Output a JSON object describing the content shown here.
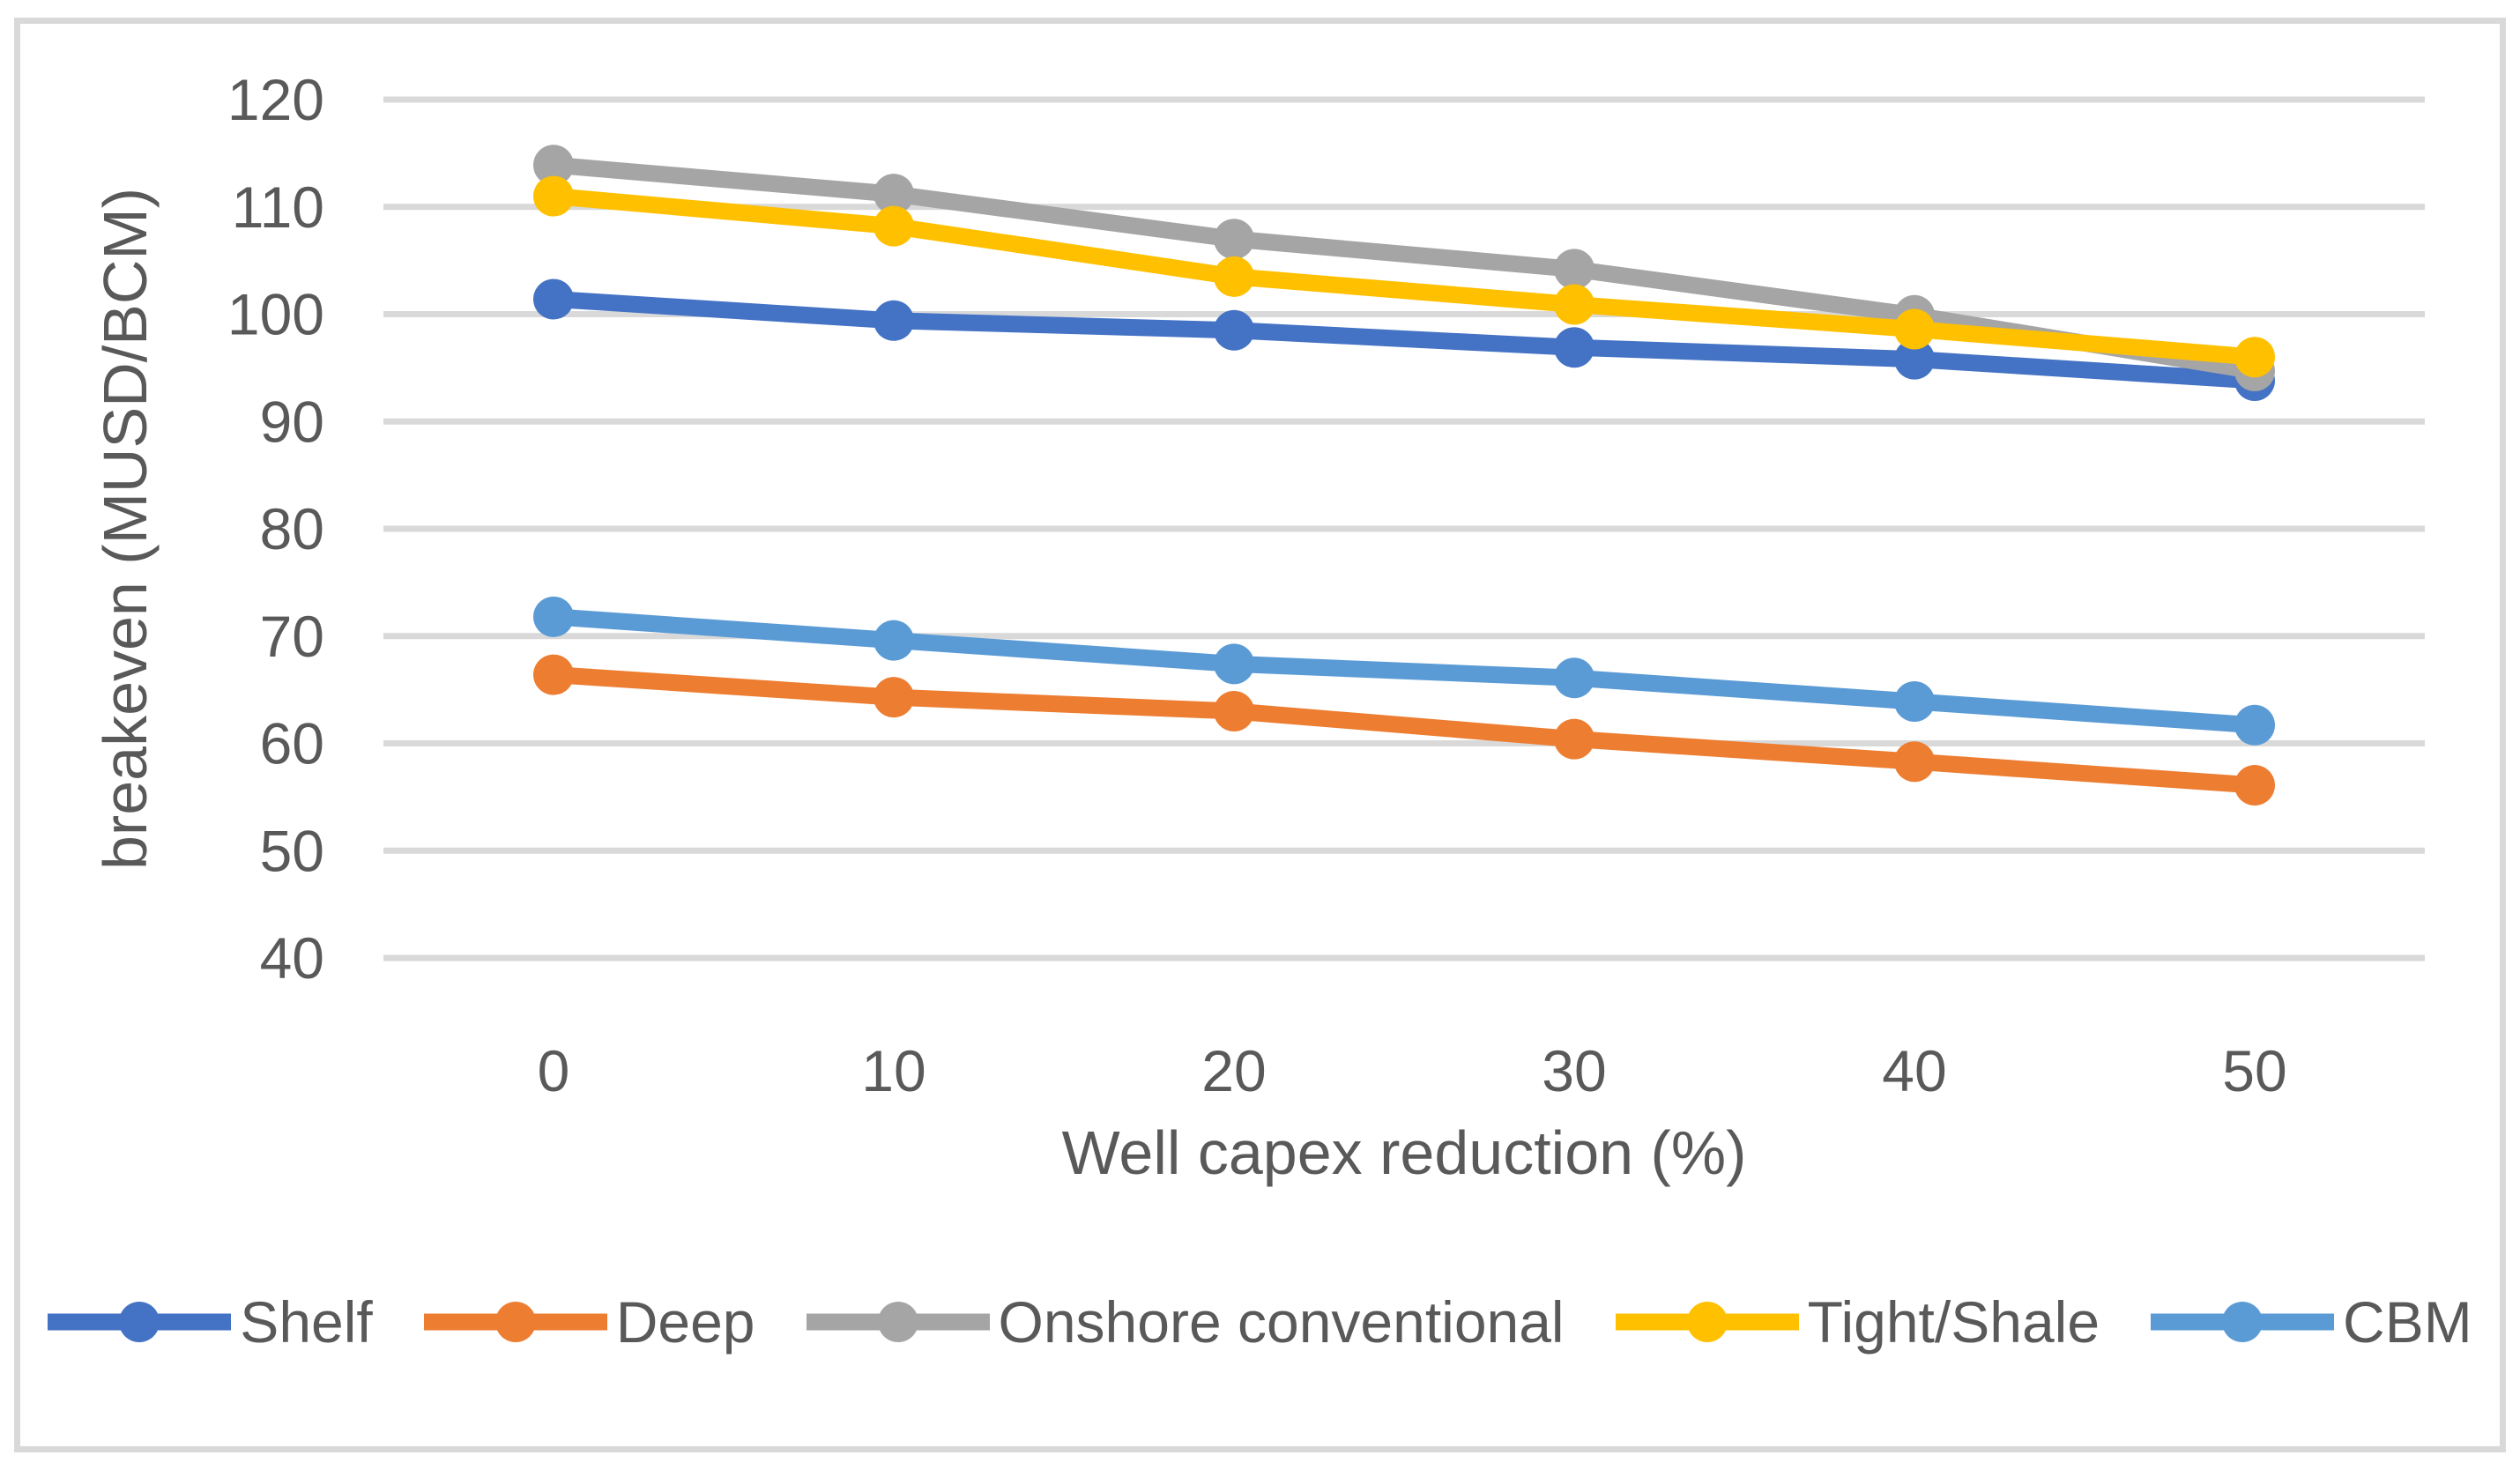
{
  "chart_data": {
    "type": "line",
    "title": "",
    "xlabel": "Well capex reduction (%)",
    "ylabel": "breakeven (MUSD/BCM)",
    "categories": [
      "0",
      "10",
      "20",
      "30",
      "40",
      "50"
    ],
    "ylim": [
      40,
      120
    ],
    "ytick_step": 10,
    "ytick_labels": [
      "40",
      "50",
      "60",
      "70",
      "80",
      "90",
      "100",
      "110",
      "120"
    ],
    "grid": true,
    "grid_color": "#D9D9D9",
    "axis_text_color": "#595959",
    "legend_position": "bottom",
    "series": [
      {
        "name": "Shelf",
        "color": "#4472C4",
        "values": [
          101.4,
          99.4,
          98.5,
          96.9,
          95.8,
          93.8
        ]
      },
      {
        "name": "Deep",
        "color": "#ED7D31",
        "values": [
          66.4,
          64.3,
          63.0,
          60.4,
          58.3,
          56.1
        ]
      },
      {
        "name": "Onshore conventional",
        "color": "#A5A5A5",
        "values": [
          113.9,
          111.2,
          107.0,
          104.2,
          99.9,
          94.7
        ]
      },
      {
        "name": "Tight/Shale",
        "color": "#FFC000",
        "values": [
          111.0,
          108.2,
          103.5,
          100.9,
          98.6,
          96.0
        ]
      },
      {
        "name": "CBM",
        "color": "#5B9BD5",
        "values": [
          71.8,
          69.6,
          67.4,
          66.1,
          63.9,
          61.7
        ]
      }
    ]
  }
}
